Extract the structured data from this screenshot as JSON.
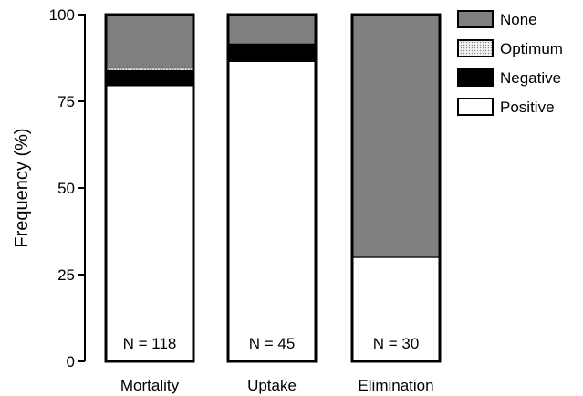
{
  "chart_data": {
    "type": "bar",
    "stacked": true,
    "ylabel": "Frequency (%)",
    "xlabel": "",
    "ylim": [
      0,
      100
    ],
    "yticks": [
      "0",
      "25",
      "50",
      "75",
      "100"
    ],
    "categories": [
      "Mortality",
      "Uptake",
      "Elimination"
    ],
    "sample_sizes": [
      "N = 118",
      "N = 45",
      "N = 30"
    ],
    "series": [
      {
        "name": "Positive",
        "values": [
          79.5,
          86.5,
          30
        ],
        "color": "#ffffff",
        "pattern": "none"
      },
      {
        "name": "Negative",
        "values": [
          4.3,
          5,
          0
        ],
        "color": "#000000",
        "pattern": "none"
      },
      {
        "name": "Optimum",
        "values": [
          0.8,
          0,
          0
        ],
        "color": "#d9d9d9",
        "pattern": "dots"
      },
      {
        "name": "None",
        "values": [
          15.4,
          8.5,
          70
        ],
        "color": "#808080",
        "pattern": "none"
      }
    ],
    "legend": {
      "placement": "top-right",
      "order": [
        "None",
        "Optimum",
        "Negative",
        "Positive"
      ]
    },
    "grid": false
  }
}
